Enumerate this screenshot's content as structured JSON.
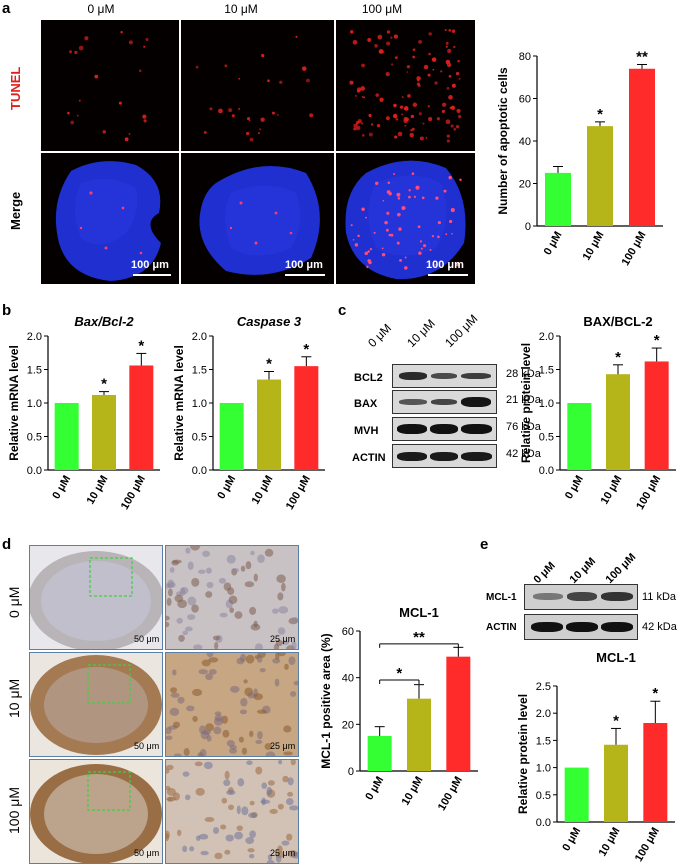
{
  "panels": {
    "a": "a",
    "b": "b",
    "c": "c",
    "d": "d",
    "e": "e"
  },
  "panel_a": {
    "columns": [
      "0 μM",
      "10 μM",
      "100 μM"
    ],
    "rows": {
      "tunel": "TUNEL",
      "merge": "Merge"
    },
    "scale_bars": [
      "100 μm",
      "100 μm",
      "100 μm"
    ],
    "tunel_color": "#e0201c",
    "merge_color": "#1f2fd0"
  },
  "panel_d": {
    "rows": [
      "0 μM",
      "10 μM",
      "100 μM"
    ],
    "scale_left": [
      "50 μm",
      "50 μm",
      "50 μm"
    ],
    "scale_right": [
      "25 μm",
      "25 μm",
      "25 μm"
    ],
    "roi_color": "#3cd23c"
  },
  "panel_c_blot": {
    "lanes": [
      "0 μM",
      "10 μM",
      "100 μM"
    ],
    "rows": [
      {
        "name": "BCL2",
        "kda": "28 kDa"
      },
      {
        "name": "BAX",
        "kda": "21 kDa"
      },
      {
        "name": "MVH",
        "kda": "76 kDa"
      },
      {
        "name": "ACTIN",
        "kda": "42 kDa"
      }
    ]
  },
  "panel_e_blot": {
    "lanes": [
      "0 μM",
      "10 μM",
      "100 μM"
    ],
    "rows": [
      {
        "name": "MCL-1",
        "kda": "11 kDa"
      },
      {
        "name": "ACTIN",
        "kda": "42 kDa"
      }
    ]
  },
  "chart_data": [
    {
      "id": "a",
      "type": "bar",
      "title": "",
      "ylabel": "Number of apoptotic cells",
      "xlabel": "",
      "categories": [
        "0 μM",
        "10 μM",
        "100 μM"
      ],
      "values": [
        25,
        47,
        74
      ],
      "errors": [
        3,
        2,
        2
      ],
      "sig": [
        "",
        "*",
        "**"
      ],
      "ylim": [
        0,
        80
      ],
      "yticks": [
        "0",
        "20",
        "40",
        "60",
        "80"
      ],
      "colors": [
        "#33ff33",
        "#b5b51a",
        "#ff2a2a"
      ]
    },
    {
      "id": "b1",
      "type": "bar",
      "title": "Bax/Bcl-2",
      "ylabel": "Relative mRNA level",
      "xlabel": "",
      "categories": [
        "0 μM",
        "10 μM",
        "100 μM"
      ],
      "values": [
        1.0,
        1.12,
        1.56
      ],
      "errors": [
        0,
        0.05,
        0.18
      ],
      "sig": [
        "",
        "*",
        "*"
      ],
      "ylim": [
        0,
        2.0
      ],
      "yticks": [
        "0.0",
        "0.5",
        "1.0",
        "1.5",
        "2.0"
      ],
      "colors": [
        "#33ff33",
        "#b5b51a",
        "#ff2a2a"
      ]
    },
    {
      "id": "b2",
      "type": "bar",
      "title": "Caspase 3",
      "ylabel": "Relative mRNA level",
      "xlabel": "",
      "categories": [
        "0 μM",
        "10 μM",
        "100 μM"
      ],
      "values": [
        1.0,
        1.35,
        1.55
      ],
      "errors": [
        0,
        0.12,
        0.14
      ],
      "sig": [
        "",
        "*",
        "*"
      ],
      "ylim": [
        0,
        2.0
      ],
      "yticks": [
        "0.0",
        "0.5",
        "1.0",
        "1.5",
        "2.0"
      ],
      "colors": [
        "#33ff33",
        "#b5b51a",
        "#ff2a2a"
      ]
    },
    {
      "id": "c",
      "type": "bar",
      "title": "BAX/BCL-2",
      "ylabel": "Relative protein level",
      "xlabel": "",
      "categories": [
        "0 μM",
        "10 μM",
        "100 μM"
      ],
      "values": [
        1.0,
        1.43,
        1.62
      ],
      "errors": [
        0,
        0.14,
        0.2
      ],
      "sig": [
        "",
        "*",
        "*"
      ],
      "ylim": [
        0,
        2.0
      ],
      "yticks": [
        "0.0",
        "0.5",
        "1.0",
        "1.5",
        "2.0"
      ],
      "colors": [
        "#33ff33",
        "#b5b51a",
        "#ff2a2a"
      ]
    },
    {
      "id": "d",
      "type": "bar",
      "title": "MCL-1",
      "ylabel": "MCL-1 positive area (%)",
      "xlabel": "",
      "categories": [
        "0 μM",
        "10 μM",
        "100 μM"
      ],
      "values": [
        15,
        31,
        49
      ],
      "errors": [
        4,
        6,
        4
      ],
      "sig": [
        "",
        "",
        ""
      ],
      "brackets": [
        {
          "from": 0,
          "to": 1,
          "label": "*"
        },
        {
          "from": 0,
          "to": 2,
          "label": "**"
        }
      ],
      "ylim": [
        0,
        60
      ],
      "yticks": [
        "0",
        "20",
        "40",
        "60"
      ],
      "colors": [
        "#33ff33",
        "#b5b51a",
        "#ff2a2a"
      ]
    },
    {
      "id": "e",
      "type": "bar",
      "title": "MCL-1",
      "ylabel": "Relative protein level",
      "xlabel": "",
      "categories": [
        "0 μM",
        "10 μM",
        "100 μM"
      ],
      "values": [
        1.0,
        1.42,
        1.82
      ],
      "errors": [
        0,
        0.3,
        0.4
      ],
      "sig": [
        "",
        "*",
        "*"
      ],
      "ylim": [
        0,
        2.5
      ],
      "yticks": [
        "0.0",
        "0.5",
        "1.0",
        "1.5",
        "2.0",
        "2.5"
      ],
      "colors": [
        "#33ff33",
        "#b5b51a",
        "#ff2a2a"
      ]
    }
  ]
}
